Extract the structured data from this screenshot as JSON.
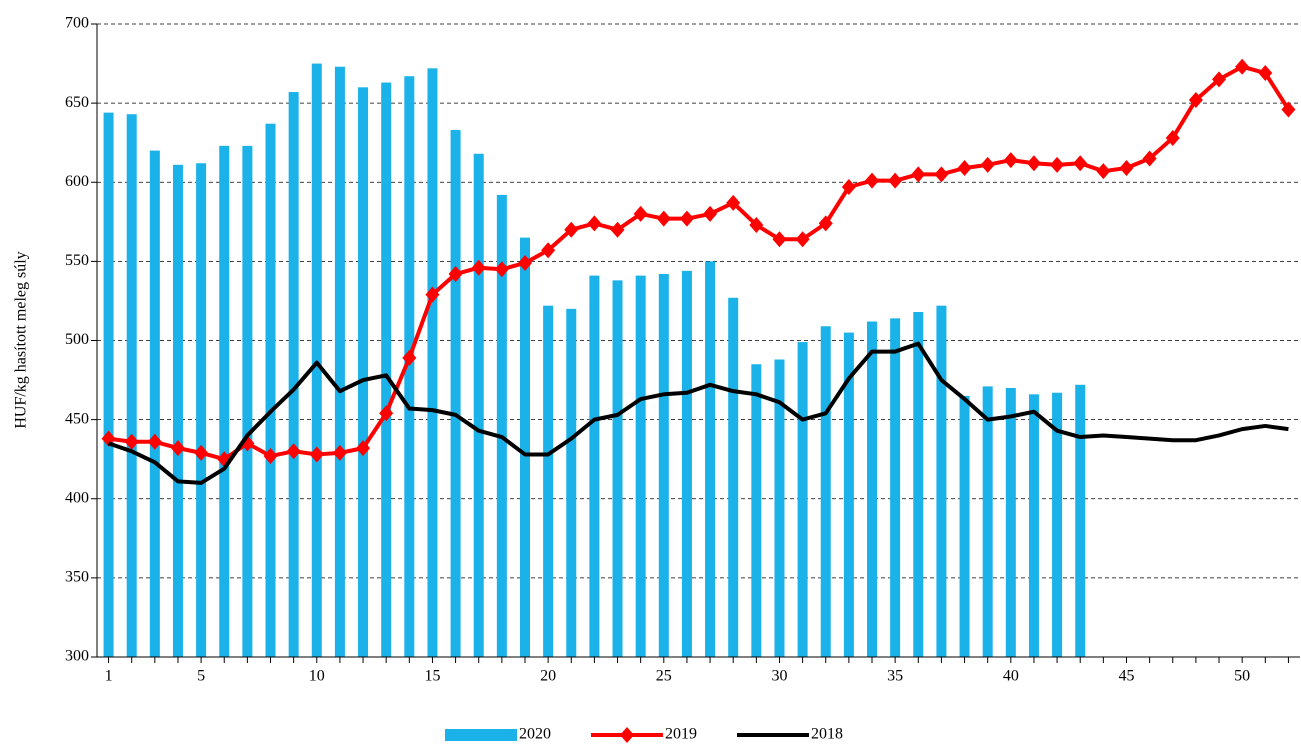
{
  "chart_data": {
    "type": "bar_line",
    "y_label": "HUF/kg hasított meleg súly",
    "x": [
      1,
      2,
      3,
      4,
      5,
      6,
      7,
      8,
      9,
      10,
      11,
      12,
      13,
      14,
      15,
      16,
      17,
      18,
      19,
      20,
      21,
      22,
      23,
      24,
      25,
      26,
      27,
      28,
      29,
      30,
      31,
      32,
      33,
      34,
      35,
      36,
      37,
      38,
      39,
      40,
      41,
      42,
      43,
      44,
      45,
      46,
      47,
      48,
      49,
      50,
      51,
      52
    ],
    "xlim": [
      0.5,
      52.5
    ],
    "xticks": [
      1,
      5,
      10,
      15,
      20,
      25,
      30,
      35,
      40,
      45,
      50
    ],
    "ylim": [
      300,
      700
    ],
    "yticks": [
      300,
      350,
      400,
      450,
      500,
      550,
      600,
      650,
      700
    ],
    "grid": true,
    "legend": "bottom",
    "series": [
      {
        "name": "2020",
        "kind": "bar",
        "color": "#1ab2e8",
        "values": [
          644,
          643,
          620,
          611,
          612,
          623,
          623,
          637,
          657,
          675,
          673,
          660,
          663,
          667,
          672,
          633,
          618,
          592,
          565,
          522,
          520,
          541,
          538,
          541,
          542,
          544,
          550,
          527,
          485,
          488,
          499,
          509,
          505,
          512,
          514,
          518,
          522,
          465,
          471,
          470,
          466,
          467,
          472,
          null,
          null,
          null,
          null,
          null,
          null,
          null,
          null,
          null
        ]
      },
      {
        "name": "2019",
        "kind": "line",
        "marker": "diamond",
        "color": "#ff0000",
        "values": [
          438,
          436,
          436,
          432,
          429,
          425,
          435,
          427,
          430,
          428,
          429,
          432,
          454,
          489,
          529,
          542,
          546,
          545,
          549,
          557,
          570,
          574,
          570,
          580,
          577,
          577,
          580,
          587,
          573,
          564,
          564,
          574,
          597,
          601,
          601,
          605,
          605,
          609,
          611,
          614,
          612,
          611,
          612,
          607,
          609,
          615,
          628,
          652,
          665,
          673,
          669,
          646
        ]
      },
      {
        "name": "2018",
        "kind": "line",
        "color": "#000000",
        "values": [
          435,
          430,
          423,
          411,
          410,
          419,
          440,
          455,
          469,
          486,
          468,
          475,
          478,
          457,
          456,
          453,
          443,
          439,
          428,
          428,
          438,
          450,
          453,
          463,
          466,
          467,
          472,
          468,
          466,
          461,
          450,
          454,
          476,
          493,
          493,
          498,
          475,
          463,
          450,
          452,
          455,
          443,
          439,
          440,
          439,
          438,
          437,
          437,
          440,
          444,
          446,
          444
        ]
      }
    ]
  }
}
